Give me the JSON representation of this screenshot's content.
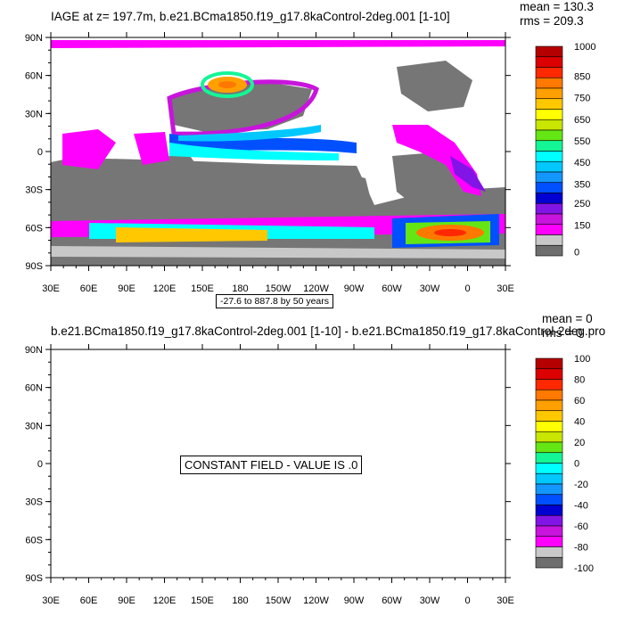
{
  "colors": {
    "ocean_gray": "#767676",
    "land": "#ffffff",
    "palette": [
      "#6e6e6e",
      "#c8c8c8",
      "#ff00ff",
      "#c814dc",
      "#8214e6",
      "#0000d2",
      "#0050ff",
      "#1496ff",
      "#00c8ff",
      "#00ffff",
      "#00ffc8",
      "#14f596",
      "#64e614",
      "#c8e600",
      "#ffff00",
      "#ffc800",
      "#ffa000",
      "#ff7800",
      "#ff2800",
      "#dc0000",
      "#b40000"
    ]
  },
  "chart_data": [
    {
      "type": "heatmap",
      "title": "IAGE at z= 197.7m, b.e21.BCma1850.f19_g17.8kaControl-2deg.001 [1-10]",
      "stats": {
        "mean": "mean = 130.3",
        "rms": "rms = 209.3"
      },
      "x_ticks": [
        "30E",
        "60E",
        "90E",
        "120E",
        "150E",
        "180",
        "150W",
        "120W",
        "90W",
        "60W",
        "30W",
        "0",
        "30E"
      ],
      "y_ticks": [
        "90N",
        "60N",
        "30N",
        "0",
        "30S",
        "60S",
        "90S"
      ],
      "colorbar_labels": [
        "1000",
        "850",
        "750",
        "650",
        "550",
        "450",
        "350",
        "250",
        "150",
        "0"
      ],
      "contour_note": "-27.6 to 887.8 by 50 years"
    },
    {
      "type": "heatmap",
      "title": "b.e21.BCma1850.f19_g17.8kaControl-2deg.001 [1-10] - b.e21.BCma1850.f19_g17.8kaControl-2deg.pro",
      "stats": {
        "mean": "mean = 0",
        "rms": "rms = 0"
      },
      "x_ticks": [
        "30E",
        "60E",
        "90E",
        "120E",
        "150E",
        "180",
        "150W",
        "120W",
        "90W",
        "60W",
        "30W",
        "0",
        "30E"
      ],
      "y_ticks": [
        "90N",
        "60N",
        "30N",
        "0",
        "30S",
        "60S",
        "90S"
      ],
      "colorbar_labels": [
        "100",
        "80",
        "60",
        "40",
        "20",
        "0",
        "-20",
        "-40",
        "-60",
        "-80",
        "-100"
      ],
      "constant_note": "CONSTANT FIELD - VALUE IS .0"
    }
  ]
}
